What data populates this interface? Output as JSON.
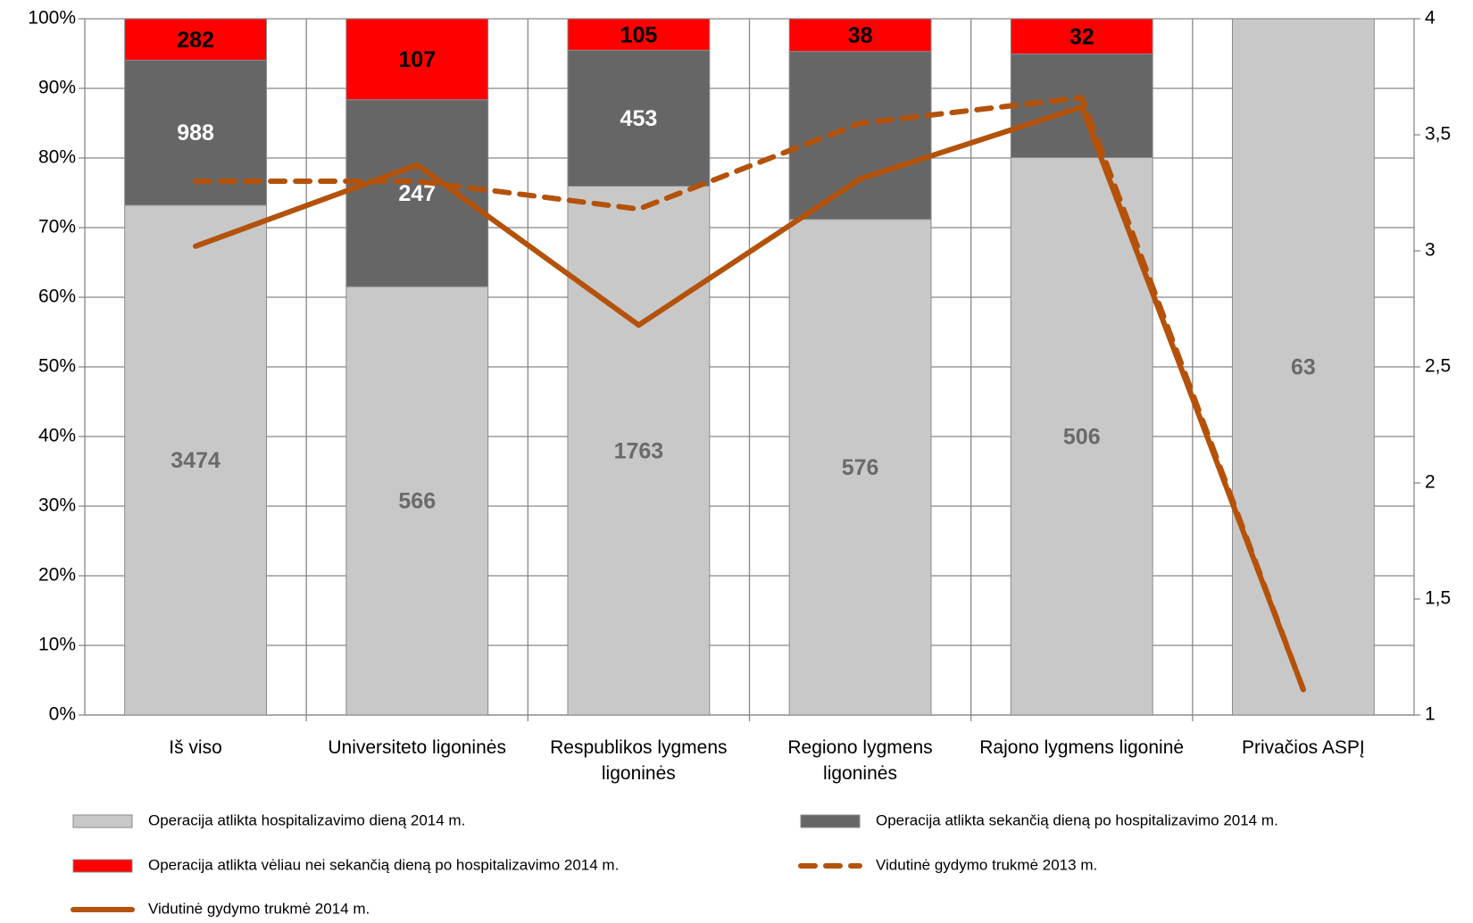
{
  "chart_data": {
    "type": "bar",
    "stacked": true,
    "normalized": true,
    "categories": [
      "Iš viso",
      "Universiteto ligoninės",
      "Respublikos lygmens ligoninės",
      "Regiono lygmens ligoninės",
      "Rajono lygmens ligoninė",
      "Privačios ASPĮ"
    ],
    "series": [
      {
        "name": "Operacija atlikta hospitalizavimo dieną 2014 m.",
        "color": "#c8c8c8",
        "label_color": "#6a6a6a",
        "values": [
          3474,
          566,
          1763,
          576,
          506,
          63
        ]
      },
      {
        "name": "Operacija atlikta sekančią dieną po hospitalizavimo 2014 m.",
        "color": "#666666",
        "label_color": "#ffffff",
        "values": [
          988,
          247,
          453,
          195,
          94,
          0
        ],
        "value_labels": [
          "988",
          "247",
          "453",
          null,
          null,
          null
        ]
      },
      {
        "name": "Operacija atlikta vėliau nei sekančią dieną po hospitalizavimo 2014 m.",
        "color": "#ff0000",
        "label_color": "#000000",
        "values": [
          282,
          107,
          105,
          38,
          32,
          0
        ],
        "value_labels": [
          "282",
          "107",
          "105",
          "38",
          "32",
          null
        ]
      },
      {
        "name": "Vidutinė gydymo trukmė 2013 m.",
        "type": "line",
        "dashed": true,
        "axis": "y2",
        "color": "#b4520a",
        "values": [
          3.3,
          3.3,
          3.18,
          3.55,
          3.66,
          1.11
        ]
      },
      {
        "name": "Vidutinė gydymo trukmė 2014 m.",
        "type": "line",
        "axis": "y2",
        "color": "#b4520a",
        "values": [
          3.02,
          3.37,
          2.68,
          3.31,
          3.62,
          1.11
        ]
      }
    ],
    "ylim": [
      0,
      100
    ],
    "yticks": [
      {
        "value": 0,
        "label": "0%"
      },
      {
        "value": 10,
        "label": "10%"
      },
      {
        "value": 20,
        "label": "20%"
      },
      {
        "value": 30,
        "label": "30%"
      },
      {
        "value": 40,
        "label": "40%"
      },
      {
        "value": 50,
        "label": "50%"
      },
      {
        "value": 60,
        "label": "60%"
      },
      {
        "value": 70,
        "label": "70%"
      },
      {
        "value": 80,
        "label": "80%"
      },
      {
        "value": 90,
        "label": "90%"
      },
      {
        "value": 100,
        "label": "100%"
      }
    ],
    "y2lim": [
      1,
      4
    ],
    "y2ticks": [
      1,
      {
        "value": 1.5,
        "label": "1,5"
      },
      2,
      {
        "value": 2.5,
        "label": "2,5"
      },
      3,
      {
        "value": 3.5,
        "label": "3,5"
      },
      4
    ],
    "grid": true,
    "legend": "bottom"
  }
}
